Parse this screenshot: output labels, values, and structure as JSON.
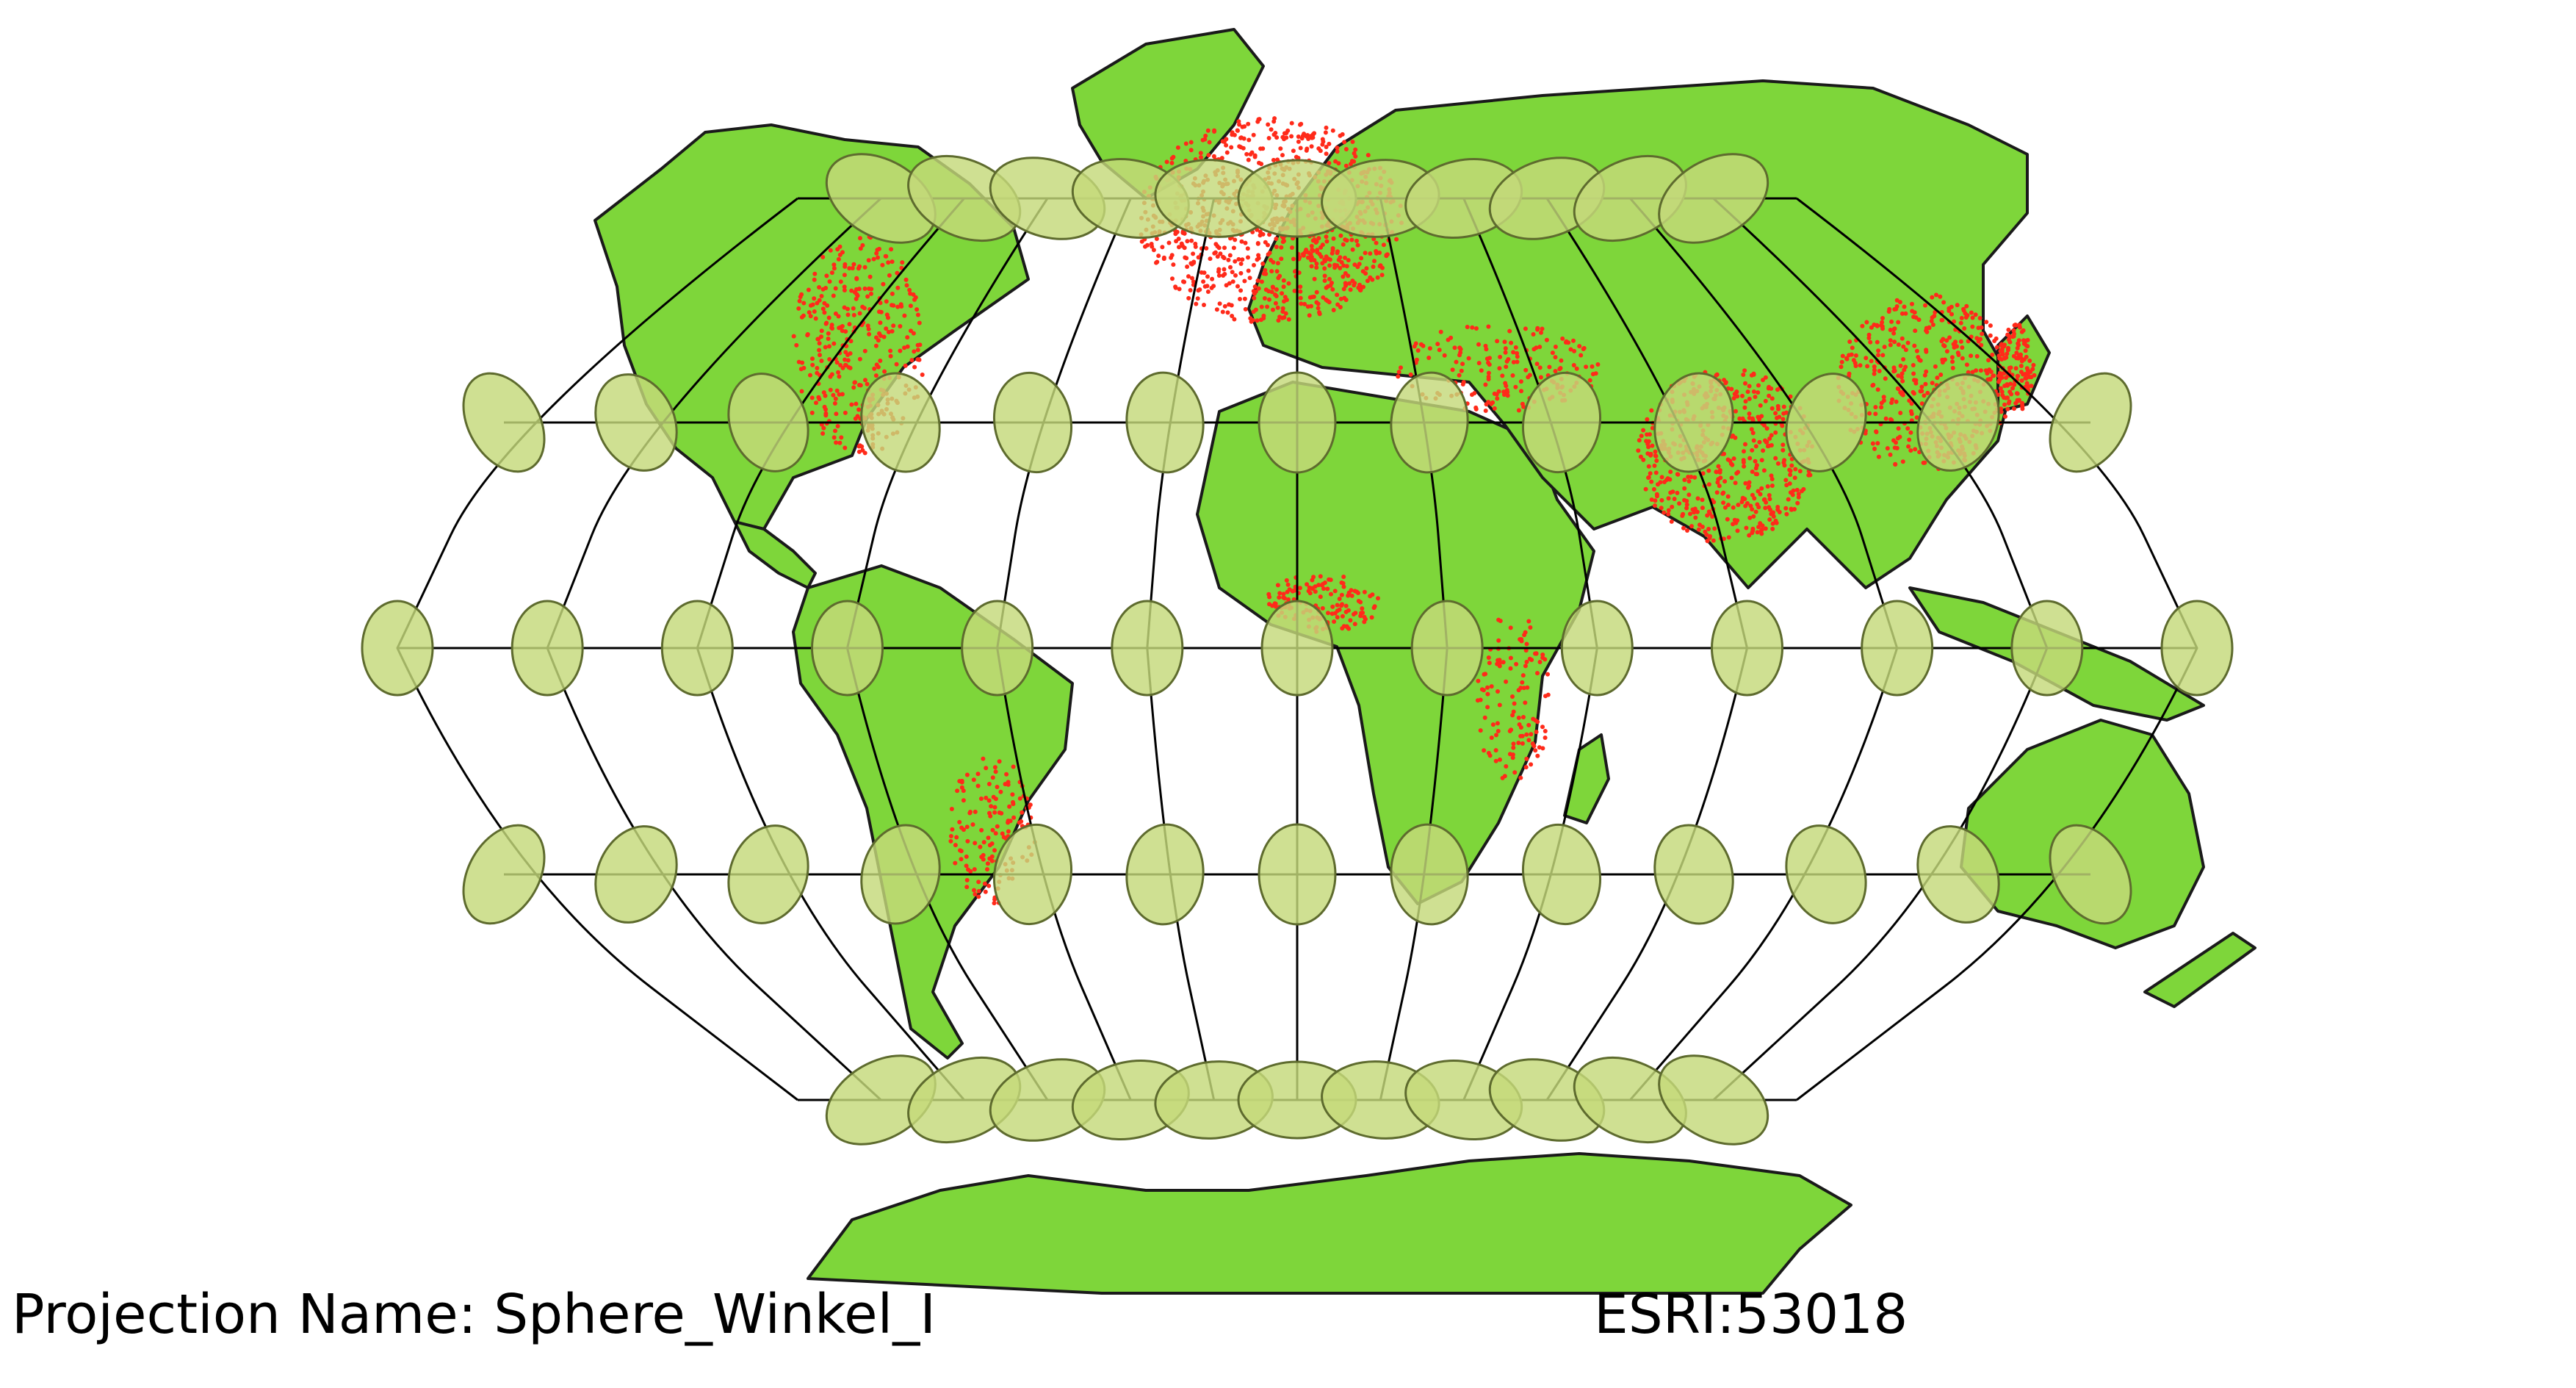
{
  "map": {
    "projection_name_text": "Projection Name: Sphere_Winkel_I",
    "projection_code_text": "ESRI:53018",
    "colors": {
      "background": "#ffffff",
      "land_fill": "#7ed63a",
      "coastline_stroke": "#1a1a1a",
      "graticule_stroke": "#000000",
      "tissot_fill": "#c5d97a",
      "tissot_stroke": "#5e6b2e",
      "population_points": "#ff2a1a"
    },
    "layers": [
      "land",
      "country-borders",
      "populated-places",
      "graticule",
      "tissot-indicatrix"
    ]
  }
}
